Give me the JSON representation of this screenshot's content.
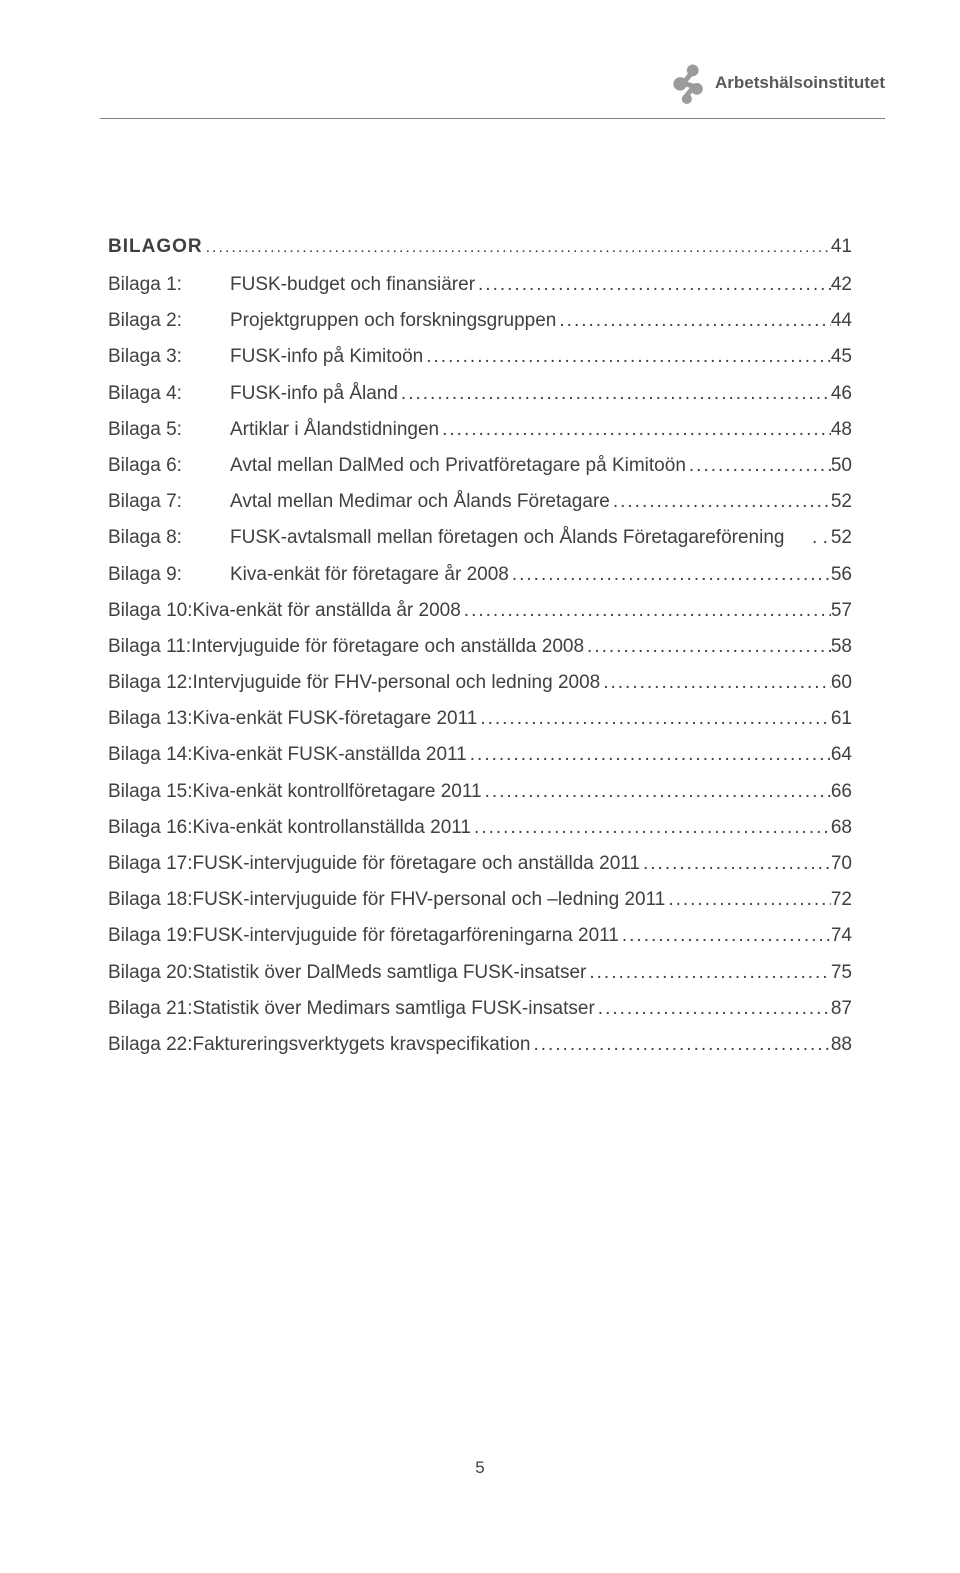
{
  "header": {
    "institute": "Arbetshälsoinstitutet"
  },
  "section": {
    "title": "BILAGOR",
    "page": "41"
  },
  "toc": [
    {
      "label": "Bilaga 1:",
      "title": "FUSK-budget och finansiärer",
      "page": "42",
      "indented": true
    },
    {
      "label": "Bilaga 2:",
      "title": "Projektgruppen och forskningsgruppen",
      "page": "44",
      "indented": true
    },
    {
      "label": "Bilaga 3:",
      "title": "FUSK-info på Kimitoön",
      "page": "45",
      "indented": true
    },
    {
      "label": "Bilaga 4:",
      "title": "FUSK-info på Åland",
      "page": "46",
      "indented": true
    },
    {
      "label": "Bilaga 5:",
      "title": "Artiklar i Ålandstidningen",
      "page": "48",
      "indented": true
    },
    {
      "label": "Bilaga 6:",
      "title": "Avtal mellan DalMed och Privatföretagare på Kimitoön",
      "page": "50",
      "indented": true
    },
    {
      "label": "Bilaga 7:",
      "title": "Avtal mellan Medimar och Ålands Företagare",
      "page": "52",
      "indented": true
    },
    {
      "label": "Bilaga 8:",
      "title": "FUSK-avtalsmall mellan företagen och Ålands Företagareförening",
      "page": "52",
      "indented": true,
      "nodots": true
    },
    {
      "label": "Bilaga 9:",
      "title": "Kiva-enkät för företagare år 2008",
      "page": "56",
      "indented": true
    },
    {
      "label": "Bilaga 10:",
      "title": " Kiva-enkät för anställda år 2008",
      "page": "57",
      "indented": false
    },
    {
      "label": "Bilaga 11:",
      "title": " Intervjuguide för företagare och anställda 2008",
      "page": "58",
      "indented": false
    },
    {
      "label": "Bilaga 12:",
      "title": " Intervjuguide för FHV-personal och ledning 2008",
      "page": "60",
      "indented": false
    },
    {
      "label": "Bilaga 13:",
      "title": " Kiva-enkät FUSK-företagare 2011",
      "page": "61",
      "indented": false
    },
    {
      "label": "Bilaga 14:",
      "title": " Kiva-enkät FUSK-anställda 2011",
      "page": "64",
      "indented": false
    },
    {
      "label": "Bilaga 15:",
      "title": " Kiva-enkät kontrollföretagare 2011",
      "page": "66",
      "indented": false
    },
    {
      "label": "Bilaga 16:",
      "title": " Kiva-enkät kontrollanställda 2011",
      "page": "68",
      "indented": false
    },
    {
      "label": "Bilaga 17:",
      "title": " FUSK-intervjuguide för företagare och anställda 2011",
      "page": "70",
      "indented": false
    },
    {
      "label": "Bilaga 18:",
      "title": " FUSK-intervjuguide för FHV-personal och –ledning 2011",
      "page": "72",
      "indented": false
    },
    {
      "label": "Bilaga 19:",
      "title": " FUSK-intervjuguide för företagarföreningarna 2011",
      "page": "74",
      "indented": false
    },
    {
      "label": "Bilaga 20:",
      "title": " Statistik över DalMeds samtliga FUSK-insatser",
      "page": "75",
      "indented": false
    },
    {
      "label": "Bilaga 21:",
      "title": " Statistik över Medimars samtliga FUSK-insatser",
      "page": "87",
      "indented": false
    },
    {
      "label": "Bilaga 22:",
      "title": " Faktureringsverktygets kravspecifikation",
      "page": "88",
      "indented": false
    }
  ],
  "pageNumber": "5",
  "colors": {
    "text": "#404040",
    "headerText": "#595959",
    "rule": "#808080",
    "logo": "#9b9b9b",
    "background": "#ffffff"
  },
  "typography": {
    "body_fontsize": 19,
    "header_fontsize": 17,
    "pagenum_fontsize": 17,
    "font_family": "Verdana"
  }
}
